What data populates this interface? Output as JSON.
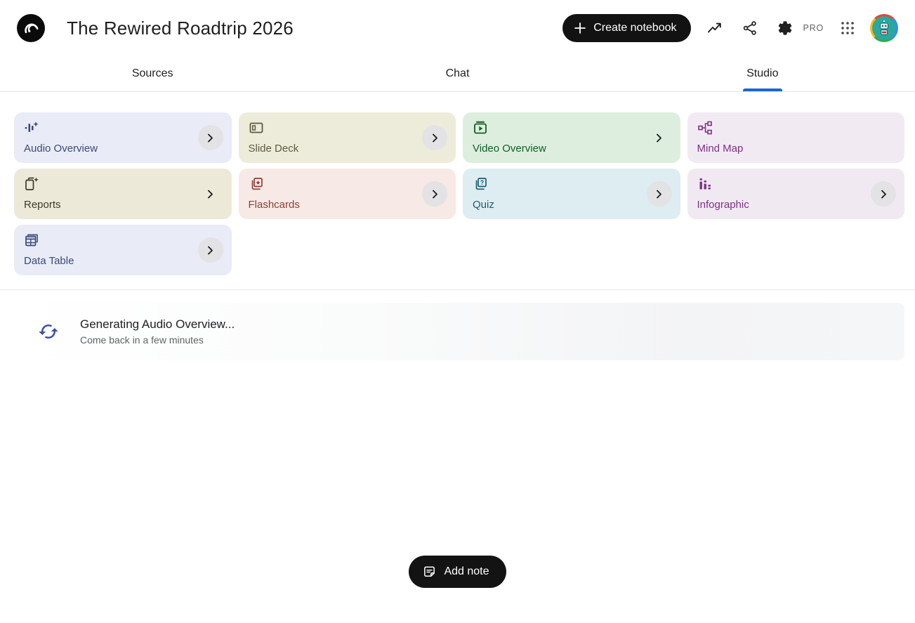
{
  "header": {
    "logo_icon": "notebooklm-logo",
    "title": "The Rewired Roadtrip 2026",
    "create_button_label": "Create notebook",
    "pro_badge": "PRO"
  },
  "tabs": [
    {
      "label": "Sources",
      "active": false
    },
    {
      "label": "Chat",
      "active": false
    },
    {
      "label": "Studio",
      "active": true
    }
  ],
  "colors": {
    "tab_underline": "#1967d2",
    "chevron_circle_bg": "#e3e2e4",
    "sync_icon": "#3e53a0",
    "create_button_bg": "#121212"
  },
  "studio": {
    "cards": [
      {
        "label": "Audio Overview",
        "icon": "audio-overview-icon",
        "bg": "#e9ebf7",
        "fg": "#3b4a7a",
        "chevron": "circle"
      },
      {
        "label": "Slide Deck",
        "icon": "slide-deck-icon",
        "bg": "#edecdb",
        "fg": "#5d5a41",
        "chevron": "circle"
      },
      {
        "label": "Video Overview",
        "icon": "video-overview-icon",
        "bg": "#ddeede",
        "fg": "#155c26",
        "chevron": "plain"
      },
      {
        "label": "Mind Map",
        "icon": "mind-map-icon",
        "bg": "#f2eaf2",
        "fg": "#7d3087",
        "chevron": "none"
      },
      {
        "label": "Reports",
        "icon": "reports-icon",
        "bg": "#ece9d9",
        "fg": "#3d3b2c",
        "chevron": "plain"
      },
      {
        "label": "Flashcards",
        "icon": "flashcards-icon",
        "bg": "#f7e9e5",
        "fg": "#8d4036",
        "chevron": "circle"
      },
      {
        "label": "Quiz",
        "icon": "quiz-icon",
        "bg": "#ddedf2",
        "fg": "#1d5b75",
        "chevron": "circle"
      },
      {
        "label": "Infographic",
        "icon": "infographic-icon",
        "bg": "#f1e9f1",
        "fg": "#7d3087",
        "chevron": "circle"
      },
      {
        "label": "Data Table",
        "icon": "data-table-icon",
        "bg": "#e9ebf7",
        "fg": "#3b4a7a",
        "chevron": "circle"
      }
    ]
  },
  "generating": {
    "icon": "sync-icon",
    "title": "Generating Audio Overview...",
    "subtitle": "Come back in a few minutes"
  },
  "add_note": {
    "icon": "note-icon",
    "label": "Add note"
  }
}
